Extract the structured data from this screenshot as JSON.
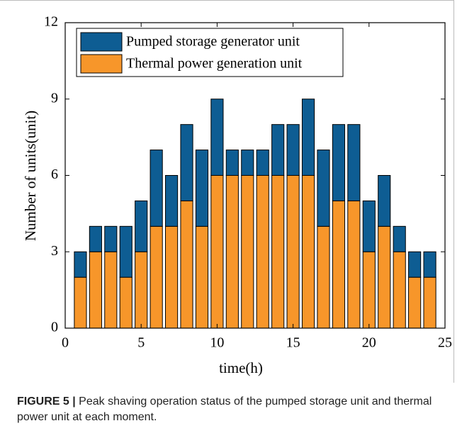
{
  "chart_data": {
    "type": "stacked_bar",
    "x": [
      1,
      2,
      3,
      4,
      5,
      6,
      7,
      8,
      9,
      10,
      11,
      12,
      13,
      14,
      15,
      16,
      17,
      18,
      19,
      20,
      21,
      22,
      23,
      24
    ],
    "series": [
      {
        "name": "Pumped storage generator unit",
        "color": "#0e5d93",
        "values": [
          1,
          1,
          1,
          2,
          2,
          3,
          2,
          3,
          3,
          3,
          1,
          1,
          1,
          2,
          2,
          3,
          3,
          3,
          3,
          2,
          2,
          1,
          1,
          1
        ]
      },
      {
        "name": "Thermal power generation unit",
        "color": "#f7962a",
        "values": [
          2,
          3,
          3,
          2,
          3,
          4,
          4,
          5,
          4,
          6,
          6,
          6,
          6,
          6,
          6,
          6,
          4,
          5,
          5,
          3,
          4,
          3,
          2,
          2
        ]
      }
    ],
    "xlabel": "time(h)",
    "ylabel": "Number of units(unit)",
    "xlim": [
      0,
      25
    ],
    "xticks": [
      0,
      5,
      10,
      15,
      20,
      25
    ],
    "ylim": [
      0,
      12
    ],
    "yticks": [
      0,
      3,
      6,
      9,
      12
    ],
    "legend": "upper left",
    "bar_width": 0.8
  },
  "caption": {
    "label": "FIGURE 5 |",
    "text": "Peak shaving operation status of the pumped storage unit and thermal power unit at each moment."
  }
}
